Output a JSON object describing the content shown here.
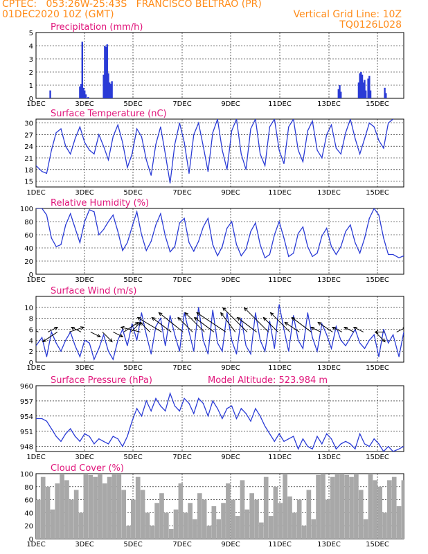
{
  "header": {
    "line1_left": "CPTEC:   053:26W-25:43S   FRANCISCO BELTRAO (PR)",
    "line2_left": "01DEC2020 10Z (GMT)",
    "line2_right": "Vertical Grid Line: 10Z",
    "line3_right": "TQ0126L028"
  },
  "colors": {
    "header": "#ff8c1a",
    "title": "#e0147a",
    "line": "#2a3bd6",
    "bar": "#2a3bd6",
    "cloud": "#a8a8a8"
  },
  "chart_data": [
    {
      "type": "bar",
      "title": "Precipitation (mm/h)",
      "ylim": [
        0,
        5
      ],
      "yticks": [
        0,
        1,
        2,
        3,
        4,
        5
      ],
      "xticks": [
        "1DEC",
        "3DEC",
        "5DEC",
        "7DEC",
        "9DEC",
        "11DEC",
        "13DEC",
        "15DEC"
      ],
      "x_day_start": 1,
      "x_day_end": 16.5,
      "x_unit": "day of December 2020",
      "x": [
        1.6,
        2.85,
        2.9,
        2.95,
        3.0,
        3.05,
        3.1,
        3.2,
        3.85,
        3.9,
        3.95,
        4.0,
        4.05,
        4.1,
        4.15,
        4.2,
        13.75,
        13.8,
        13.85,
        14.6,
        14.65,
        14.7,
        14.75,
        14.8,
        14.85,
        14.9,
        15.0,
        15.05,
        15.1,
        15.7,
        15.75
      ],
      "values": [
        0.6,
        0.9,
        1.1,
        4.3,
        0.8,
        0.6,
        0.3,
        0.1,
        1.8,
        4.0,
        3.9,
        4.1,
        1.9,
        1.2,
        1.1,
        1.3,
        0.7,
        1.0,
        0.5,
        1.2,
        1.9,
        2.0,
        1.8,
        1.2,
        1.4,
        0.6,
        1.5,
        1.7,
        0.6,
        0.8,
        0.4
      ]
    },
    {
      "type": "line",
      "title": "Surface Temperature (nC)",
      "ylim": [
        13.5,
        31
      ],
      "yticks": [
        15,
        18,
        21,
        24,
        27,
        30
      ],
      "xticks": [
        "1DEC",
        "3DEC",
        "5DEC",
        "7DEC",
        "9DEC",
        "11DEC",
        "13DEC",
        "15DEC"
      ],
      "x_day_start": 1,
      "x_day_end": 16.5,
      "x": [
        1.0,
        1.25,
        1.45,
        1.65,
        1.85,
        2.05,
        2.25,
        2.45,
        2.65,
        2.85,
        3.05,
        3.25,
        3.45,
        3.65,
        3.85,
        4.05,
        4.25,
        4.45,
        4.65,
        4.85,
        5.05,
        5.25,
        5.45,
        5.65,
        5.85,
        6.05,
        6.25,
        6.45,
        6.65,
        6.85,
        7.05,
        7.25,
        7.45,
        7.65,
        7.85,
        8.05,
        8.25,
        8.45,
        8.65,
        8.85,
        9.05,
        9.25,
        9.45,
        9.65,
        9.85,
        10.05,
        10.25,
        10.45,
        10.65,
        10.85,
        11.05,
        11.25,
        11.45,
        11.65,
        11.85,
        12.05,
        12.25,
        12.45,
        12.65,
        12.85,
        13.05,
        13.25,
        13.45,
        13.65,
        13.85,
        14.05,
        14.25,
        14.45,
        14.65,
        14.85,
        15.05,
        15.25,
        15.45,
        15.65,
        15.85,
        16.05
      ],
      "values": [
        19.0,
        17.5,
        17.0,
        23.0,
        27.5,
        28.5,
        24.0,
        22.0,
        26.0,
        29.0,
        25.0,
        23.0,
        22.0,
        27.0,
        24.0,
        20.5,
        26.5,
        29.5,
        25.0,
        18.5,
        22.0,
        28.5,
        26.5,
        20.5,
        16.5,
        24.5,
        29.0,
        22.0,
        14.5,
        24.5,
        30.0,
        25.0,
        17.0,
        27.0,
        30.0,
        24.0,
        17.5,
        27.5,
        31.0,
        23.0,
        18.0,
        28.0,
        31.0,
        22.0,
        18.0,
        28.5,
        31.0,
        22.0,
        19.0,
        29.0,
        31.0,
        23.0,
        19.5,
        29.0,
        31.0,
        23.0,
        20.0,
        28.0,
        30.5,
        23.0,
        21.0,
        27.0,
        29.5,
        23.5,
        22.0,
        27.5,
        31.0,
        26.0,
        22.0,
        26.0,
        30.0,
        29.0,
        25.5,
        23.5,
        30.0,
        31.0
      ]
    },
    {
      "type": "line",
      "title": "Relative Humidity (%)",
      "ylim": [
        0,
        100
      ],
      "yticks": [
        0,
        20,
        40,
        60,
        80,
        100
      ],
      "xticks": [
        "1DEC",
        "3DEC",
        "5DEC",
        "7DEC",
        "9DEC",
        "11DEC",
        "13DEC",
        "15DEC"
      ],
      "x_day_start": 1,
      "x_day_end": 16.5,
      "x": [
        1.0,
        1.25,
        1.45,
        1.65,
        1.85,
        2.05,
        2.25,
        2.45,
        2.65,
        2.85,
        3.05,
        3.25,
        3.45,
        3.65,
        3.85,
        4.05,
        4.25,
        4.45,
        4.65,
        4.85,
        5.05,
        5.25,
        5.45,
        5.65,
        5.85,
        6.05,
        6.25,
        6.45,
        6.65,
        6.85,
        7.05,
        7.25,
        7.45,
        7.65,
        7.85,
        8.05,
        8.25,
        8.45,
        8.65,
        8.85,
        9.05,
        9.25,
        9.45,
        9.65,
        9.85,
        10.05,
        10.25,
        10.45,
        10.65,
        10.85,
        11.05,
        11.25,
        11.45,
        11.65,
        11.85,
        12.05,
        12.25,
        12.45,
        12.65,
        12.85,
        13.05,
        13.25,
        13.45,
        13.65,
        13.85,
        14.05,
        14.25,
        14.45,
        14.65,
        14.85,
        15.05,
        15.25,
        15.45,
        15.65,
        15.85,
        16.05,
        16.3,
        16.5
      ],
      "values": [
        100,
        100,
        90,
        55,
        42,
        45,
        75,
        92,
        70,
        48,
        80,
        98,
        95,
        60,
        68,
        80,
        90,
        65,
        36,
        48,
        72,
        95,
        60,
        36,
        50,
        75,
        92,
        58,
        34,
        42,
        78,
        85,
        48,
        35,
        50,
        72,
        85,
        45,
        28,
        42,
        70,
        80,
        45,
        28,
        38,
        65,
        78,
        45,
        25,
        30,
        60,
        80,
        55,
        27,
        32,
        62,
        72,
        42,
        27,
        32,
        58,
        70,
        42,
        30,
        42,
        65,
        75,
        48,
        32,
        55,
        85,
        100,
        90,
        55,
        30,
        30,
        25,
        28
      ]
    },
    {
      "type": "line",
      "title": "Surface Wind (m/s)",
      "ylim": [
        0,
        12
      ],
      "yticks": [
        0,
        2,
        4,
        6,
        8,
        10
      ],
      "xticks": [
        "1DEC",
        "3DEC",
        "5DEC",
        "7DEC",
        "9DEC",
        "11DEC",
        "13DEC",
        "15DEC"
      ],
      "x_day_start": 1,
      "x_day_end": 16.5,
      "x": [
        1.0,
        1.25,
        1.45,
        1.65,
        1.85,
        2.05,
        2.25,
        2.45,
        2.65,
        2.85,
        3.05,
        3.25,
        3.45,
        3.65,
        3.85,
        4.05,
        4.25,
        4.45,
        4.65,
        4.85,
        5.05,
        5.25,
        5.45,
        5.65,
        5.85,
        6.05,
        6.25,
        6.45,
        6.65,
        6.85,
        7.05,
        7.25,
        7.45,
        7.65,
        7.85,
        8.05,
        8.25,
        8.45,
        8.65,
        8.85,
        9.05,
        9.25,
        9.45,
        9.65,
        9.85,
        10.05,
        10.25,
        10.45,
        10.65,
        10.85,
        11.05,
        11.25,
        11.45,
        11.65,
        11.85,
        12.05,
        12.25,
        12.45,
        12.65,
        12.85,
        13.05,
        13.25,
        13.45,
        13.65,
        13.85,
        14.05,
        14.25,
        14.45,
        14.65,
        14.85,
        15.05,
        15.25,
        15.45,
        15.65,
        15.85,
        16.05,
        16.3,
        16.5
      ],
      "values": [
        3.0,
        4.5,
        1.0,
        5.5,
        3.5,
        2.0,
        4.0,
        5.5,
        3.0,
        1.0,
        4.0,
        3.5,
        0.5,
        2.5,
        5.0,
        2.0,
        0.5,
        4.0,
        6.0,
        3.0,
        7.0,
        4.0,
        9.0,
        5.0,
        1.5,
        6.5,
        8.0,
        3.0,
        8.5,
        5.0,
        2.0,
        9.0,
        5.5,
        2.0,
        10.0,
        4.0,
        1.5,
        9.5,
        3.5,
        2.0,
        9.0,
        4.0,
        1.5,
        8.0,
        3.0,
        1.5,
        9.0,
        4.0,
        2.0,
        7.5,
        2.5,
        10.5,
        6.0,
        2.0,
        8.5,
        4.0,
        2.5,
        9.0,
        4.5,
        2.0,
        7.0,
        5.0,
        2.5,
        6.5,
        4.0,
        3.0,
        4.5,
        6.0,
        3.5,
        2.5,
        4.0,
        5.0,
        1.0,
        6.0,
        3.5,
        5.0,
        1.0,
        5.5
      ],
      "arrows_day": [
        1.1,
        1.5,
        1.9,
        2.4,
        2.9,
        3.3,
        3.8,
        4.25,
        4.7,
        5.0,
        5.4,
        5.8,
        6.3,
        6.7,
        7.2,
        7.6,
        8.1,
        8.5,
        9.0,
        9.4,
        9.9,
        10.3,
        10.8,
        11.2,
        11.7,
        12.1,
        12.6,
        13.0,
        13.5,
        13.9,
        14.4,
        14.8,
        15.3,
        15.7,
        16.2
      ],
      "arrows_u": [
        -2,
        2,
        -3,
        3,
        -2,
        2,
        2,
        2,
        3,
        2,
        -4,
        -2,
        -5,
        -4,
        -5,
        -3,
        -4,
        -4,
        -6,
        -3,
        -5,
        -4,
        -5,
        -3,
        -4,
        -3,
        -4,
        -2,
        -3,
        -2,
        -2,
        -2,
        2,
        -2,
        2
      ],
      "arrows_v": [
        1,
        1,
        -2,
        1,
        1,
        -1,
        -2,
        -1,
        2,
        2,
        1,
        2,
        3,
        3,
        4,
        3,
        4,
        3,
        4,
        4,
        5,
        3,
        5,
        3,
        4,
        2,
        3,
        1,
        2,
        1,
        1,
        1,
        -2,
        0,
        1
      ]
    },
    {
      "type": "line",
      "title": "Surface Pressure (hPa)",
      "annotation": "Model Altitude: 523.984 m",
      "ylim": [
        947,
        960
      ],
      "yticks": [
        948,
        951,
        954,
        957,
        960
      ],
      "xticks": [
        "1DEC",
        "3DEC",
        "5DEC",
        "7DEC",
        "9DEC",
        "11DEC",
        "13DEC",
        "15DEC"
      ],
      "x_day_start": 1,
      "x_day_end": 16.5,
      "x": [
        1.0,
        1.25,
        1.45,
        1.65,
        1.85,
        2.05,
        2.25,
        2.45,
        2.65,
        2.85,
        3.05,
        3.25,
        3.45,
        3.65,
        3.85,
        4.05,
        4.25,
        4.45,
        4.65,
        4.85,
        5.05,
        5.25,
        5.45,
        5.65,
        5.85,
        6.05,
        6.25,
        6.45,
        6.65,
        6.85,
        7.05,
        7.25,
        7.45,
        7.65,
        7.85,
        8.05,
        8.25,
        8.45,
        8.65,
        8.85,
        9.05,
        9.25,
        9.45,
        9.65,
        9.85,
        10.05,
        10.25,
        10.45,
        10.65,
        10.85,
        11.05,
        11.25,
        11.45,
        11.65,
        11.85,
        12.05,
        12.25,
        12.45,
        12.65,
        12.85,
        13.05,
        13.25,
        13.45,
        13.65,
        13.85,
        14.05,
        14.25,
        14.45,
        14.65,
        14.85,
        15.05,
        15.25,
        15.45,
        15.65,
        15.85,
        16.05,
        16.3,
        16.5
      ],
      "values": [
        953.5,
        953.5,
        953.0,
        951.5,
        950.0,
        949.0,
        950.5,
        951.5,
        950.0,
        949.0,
        950.5,
        950.0,
        948.5,
        949.5,
        949.0,
        948.5,
        950.0,
        949.5,
        948.0,
        950.0,
        953.0,
        955.5,
        954.0,
        957.0,
        955.0,
        957.5,
        956.0,
        955.0,
        958.5,
        956.0,
        955.0,
        957.5,
        956.5,
        954.5,
        957.5,
        956.5,
        954.0,
        957.0,
        955.5,
        953.5,
        955.5,
        956.0,
        953.5,
        955.5,
        954.5,
        953.0,
        955.5,
        954.0,
        952.0,
        950.5,
        949.0,
        950.5,
        949.0,
        949.5,
        950.0,
        947.5,
        949.5,
        948.0,
        947.5,
        950.0,
        948.5,
        950.5,
        949.5,
        947.5,
        948.5,
        949.0,
        948.5,
        947.5,
        950.5,
        948.5,
        948.0,
        949.5,
        948.5,
        947.0,
        948.0,
        947.0,
        947.5,
        948.0
      ]
    },
    {
      "type": "bar",
      "title": "Cloud Cover (%)",
      "ylim": [
        0,
        100
      ],
      "yticks": [
        0,
        20,
        40,
        60,
        80,
        100
      ],
      "xticks": [
        "1DEC",
        "3DEC",
        "5DEC",
        "7DEC",
        "9DEC",
        "11DEC",
        "13DEC",
        "15DEC"
      ],
      "x_day_start": 1,
      "x_day_end": 16.5,
      "x": [
        1.0,
        1.2,
        1.4,
        1.6,
        1.8,
        2.0,
        2.2,
        2.4,
        2.6,
        2.8,
        3.0,
        3.2,
        3.4,
        3.6,
        3.8,
        4.0,
        4.2,
        4.4,
        4.6,
        4.8,
        5.0,
        5.2,
        5.4,
        5.6,
        5.8,
        6.0,
        6.2,
        6.4,
        6.6,
        6.8,
        7.0,
        7.2,
        7.4,
        7.6,
        7.8,
        8.0,
        8.2,
        8.4,
        8.6,
        8.8,
        9.0,
        9.2,
        9.4,
        9.6,
        9.8,
        10.0,
        10.2,
        10.4,
        10.6,
        10.8,
        11.0,
        11.2,
        11.4,
        11.6,
        11.8,
        12.0,
        12.2,
        12.4,
        12.6,
        12.8,
        13.0,
        13.2,
        13.4,
        13.6,
        13.8,
        14.0,
        14.2,
        14.4,
        14.6,
        14.8,
        15.0,
        15.2,
        15.4,
        15.6,
        15.8,
        16.0,
        16.2,
        16.4
      ],
      "values": [
        60,
        95,
        80,
        45,
        85,
        100,
        90,
        60,
        75,
        40,
        100,
        98,
        95,
        100,
        85,
        95,
        100,
        100,
        75,
        20,
        60,
        95,
        75,
        40,
        20,
        55,
        70,
        40,
        15,
        45,
        85,
        40,
        55,
        30,
        70,
        60,
        20,
        50,
        30,
        55,
        85,
        60,
        35,
        90,
        45,
        70,
        60,
        25,
        95,
        35,
        80,
        55,
        100,
        65,
        40,
        60,
        20,
        75,
        30,
        98,
        100,
        60,
        95,
        100,
        100,
        98,
        95,
        100,
        75,
        30,
        100,
        90,
        80,
        40,
        90,
        95,
        50,
        90
      ]
    }
  ]
}
